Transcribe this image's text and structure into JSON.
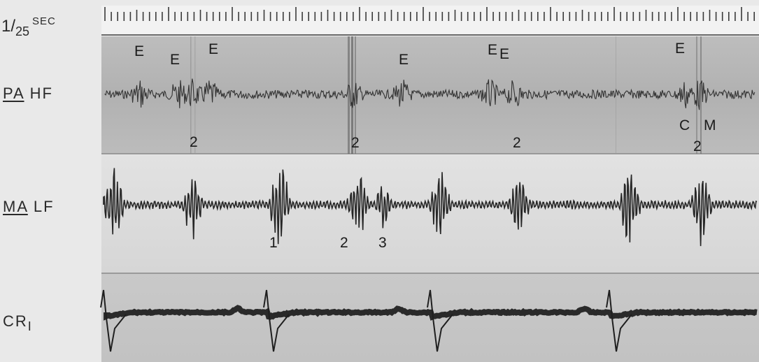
{
  "labels": {
    "time_prefix": "1/",
    "time_denominator": "25",
    "time_unit": "SEC",
    "pa_hf_site": "PA",
    "pa_hf_filter": "HF",
    "ma_lf_site": "MA",
    "ma_lf_filter": "LF",
    "cr_prefix": "CR",
    "cr_suffix": "I"
  },
  "annotations": {
    "pa_e1": "E",
    "pa_e2": "E",
    "pa_e3": "E",
    "pa_e4": "E",
    "pa_e5": "E",
    "pa_e6": "E",
    "pa_e7": "E",
    "pa_2a": "2",
    "pa_2b": "2",
    "pa_2c": "2",
    "pa_2d": "2",
    "pa_c": "C",
    "pa_m": "M",
    "ma_1": "1",
    "ma_2": "2",
    "ma_3": "3"
  },
  "colors": {
    "background": "#e9e9e9",
    "panel_dark": "#b6b6b6",
    "panel_light": "#d9d9d9",
    "trace": "#2b2b2b"
  }
}
